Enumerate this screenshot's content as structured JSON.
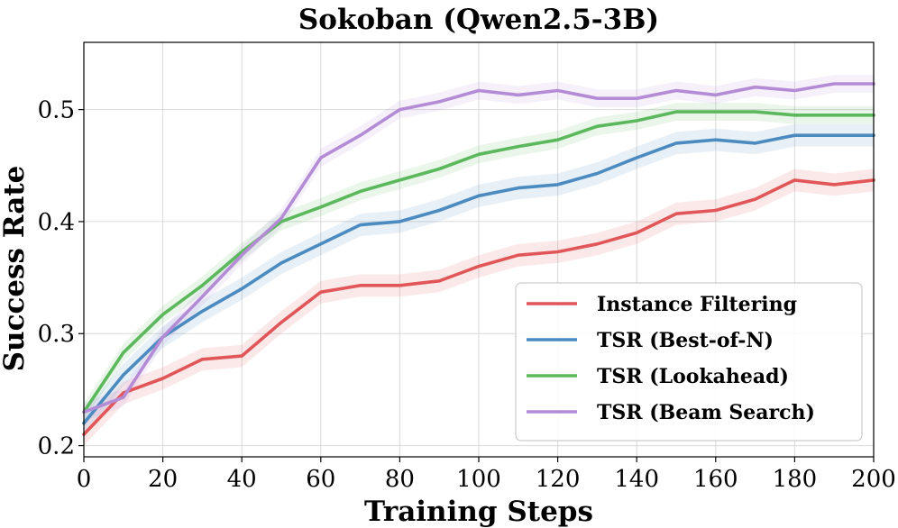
{
  "chart_data": {
    "type": "line",
    "title": "Sokoban (Qwen2.5-3B)",
    "xlabel": "Training Steps",
    "ylabel": "Success Rate",
    "xlim": [
      0,
      200
    ],
    "ylim": [
      0.19,
      0.56
    ],
    "xticks": [
      0,
      20,
      40,
      60,
      80,
      100,
      120,
      140,
      160,
      180,
      200
    ],
    "xtick_labels": [
      "0",
      "20",
      "40",
      "60",
      "80",
      "100",
      "120",
      "140",
      "160",
      "180",
      "200"
    ],
    "yticks": [
      0.2,
      0.3,
      0.4,
      0.5
    ],
    "ytick_labels": [
      "0.2",
      "0.3",
      "0.4",
      "0.5"
    ],
    "grid": true,
    "legend_position": "lower-right",
    "x": [
      0,
      10,
      20,
      30,
      40,
      50,
      60,
      70,
      80,
      90,
      100,
      110,
      120,
      130,
      140,
      150,
      160,
      170,
      180,
      190,
      200
    ],
    "series": [
      {
        "name": "Instance Filtering",
        "color": "#e15759",
        "values": [
          0.21,
          0.247,
          0.26,
          0.277,
          0.28,
          0.31,
          0.337,
          0.343,
          0.343,
          0.347,
          0.36,
          0.37,
          0.373,
          0.38,
          0.39,
          0.407,
          0.41,
          0.42,
          0.437,
          0.433,
          0.437
        ],
        "band": 0.01
      },
      {
        "name": "TSR (Best-of-N)",
        "color": "#4c8bc0",
        "values": [
          0.22,
          0.263,
          0.297,
          0.32,
          0.34,
          0.363,
          0.38,
          0.397,
          0.4,
          0.41,
          0.423,
          0.43,
          0.433,
          0.443,
          0.457,
          0.47,
          0.473,
          0.47,
          0.477,
          0.477,
          0.477
        ],
        "band": 0.01
      },
      {
        "name": "TSR (Lookahead)",
        "color": "#5cb85c",
        "values": [
          0.23,
          0.283,
          0.317,
          0.343,
          0.373,
          0.4,
          0.413,
          0.427,
          0.437,
          0.447,
          0.46,
          0.467,
          0.473,
          0.485,
          0.49,
          0.498,
          0.498,
          0.498,
          0.495,
          0.495,
          0.495
        ],
        "band": 0.008
      },
      {
        "name": "TSR (Beam Search)",
        "color": "#b48cd6",
        "values": [
          0.23,
          0.243,
          0.297,
          0.333,
          0.37,
          0.403,
          0.457,
          0.477,
          0.5,
          0.507,
          0.517,
          0.513,
          0.517,
          0.51,
          0.51,
          0.517,
          0.513,
          0.52,
          0.517,
          0.523,
          0.523
        ],
        "band": 0.008
      }
    ]
  }
}
